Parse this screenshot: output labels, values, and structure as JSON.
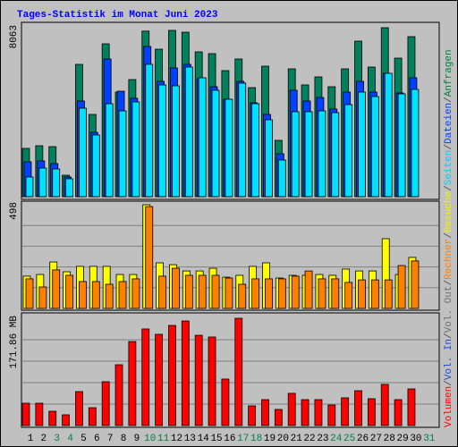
{
  "chart_data": [
    {
      "type": "bar",
      "title": "Tages-Statistik im Monat Juni 2023",
      "categories": [
        "1",
        "2",
        "3",
        "4",
        "5",
        "6",
        "7",
        "8",
        "9",
        "10",
        "11",
        "12",
        "13",
        "14",
        "15",
        "16",
        "17",
        "18",
        "19",
        "20",
        "21",
        "22",
        "23",
        "24",
        "25",
        "26",
        "27",
        "28",
        "29",
        "30",
        "31"
      ],
      "category_colors": [
        "#000000",
        "#000000",
        "#008040",
        "#008040",
        "#000000",
        "#000000",
        "#000000",
        "#000000",
        "#000000",
        "#008040",
        "#008040",
        "#000000",
        "#000000",
        "#000000",
        "#000000",
        "#000000",
        "#008040",
        "#008040",
        "#000000",
        "#000000",
        "#000000",
        "#000000",
        "#000000",
        "#008040",
        "#008040",
        "#000000",
        "#000000",
        "#000000",
        "#000000",
        "#000000",
        "#008040"
      ],
      "ylim": [
        0,
        8063
      ],
      "yticks": [
        8063
      ],
      "series": [
        {
          "color": "#00805c",
          "values": [
            2304,
            2432,
            2389,
            1024,
            6314,
            3925,
            7295,
            4991,
            5588,
            7900,
            7039,
            7935,
            7849,
            6911,
            6826,
            6015,
            6570,
            5205,
            6228,
            2688,
            6100,
            5333,
            5716,
            5247,
            6100,
            7423,
            6186,
            8063,
            6612,
            7636,
            null
          ]
        },
        {
          "color": "#0040ff",
          "values": [
            1664,
            1706,
            1578,
            939,
            4565,
            3072,
            6570,
            5034,
            4693,
            7167,
            5503,
            6143,
            6314,
            5631,
            5247,
            4650,
            5503,
            4479,
            3925,
            2048,
            5077,
            4565,
            4735,
            4181,
            4991,
            5503,
            4991,
            5887,
            4949,
            5674,
            null
          ]
        },
        {
          "color": "#00e0ff",
          "values": [
            939,
            1365,
            1322,
            853,
            4223,
            2944,
            4437,
            4095,
            4522,
            6314,
            5333,
            5290,
            6186,
            5674,
            5077,
            4650,
            5418,
            4437,
            3669,
            1749,
            4053,
            4053,
            4095,
            4010,
            4394,
            4991,
            4778,
            5887,
            4906,
            5119,
            null
          ]
        }
      ]
    },
    {
      "type": "bar",
      "ylim": [
        0,
        498
      ],
      "yticks": [
        498
      ],
      "series": [
        {
          "color": "#ffff00",
          "values": [
            155,
            163,
            223,
            176,
            202,
            202,
            202,
            163,
            163,
            498,
            219,
            210,
            180,
            180,
            193,
            150,
            159,
            202,
            219,
            146,
            159,
            159,
            163,
            159,
            189,
            180,
            180,
            335,
            163,
            245,
            null
          ]
        },
        {
          "color": "#ff8000",
          "values": [
            142,
            103,
            185,
            159,
            129,
            129,
            116,
            129,
            142,
            489,
            155,
            193,
            159,
            159,
            159,
            146,
            116,
            142,
            142,
            142,
            155,
            180,
            142,
            142,
            125,
            137,
            137,
            137,
            206,
            228,
            null
          ]
        }
      ]
    },
    {
      "type": "bar",
      "ylim": [
        0,
        171.86
      ],
      "yticks": [
        {
          "value": 171.86,
          "label": "171.86 MB"
        }
      ],
      "series": [
        {
          "color": "#ff0000",
          "values": [
            35.8,
            35.8,
            22.9,
            17.2,
            54.4,
            28.6,
            70.2,
            97.4,
            134.6,
            154.7,
            146.1,
            160.4,
            167.5,
            144.6,
            141.8,
            74.5,
            171.86,
            31.5,
            41.5,
            25.8,
            51.6,
            41.5,
            41.5,
            32.9,
            44.4,
            55.8,
            43,
            65.9,
            41.5,
            58.7,
            null
          ]
        }
      ]
    }
  ],
  "legend_separator": "/",
  "legend": [
    {
      "name": "Volumen",
      "color": "#ff0000"
    },
    {
      "name": "Vol. In",
      "color": "#2050d0"
    },
    {
      "name": "Vol. Out",
      "color": "#707070"
    },
    {
      "name": "Rechner",
      "color": "#ff8000"
    },
    {
      "name": "Besuche",
      "color": "#f0f000"
    },
    {
      "name": "Seiten",
      "color": "#00d0ff"
    },
    {
      "name": "Dateien",
      "color": "#0040ff"
    },
    {
      "name": "Anfragen",
      "color": "#008040"
    }
  ]
}
